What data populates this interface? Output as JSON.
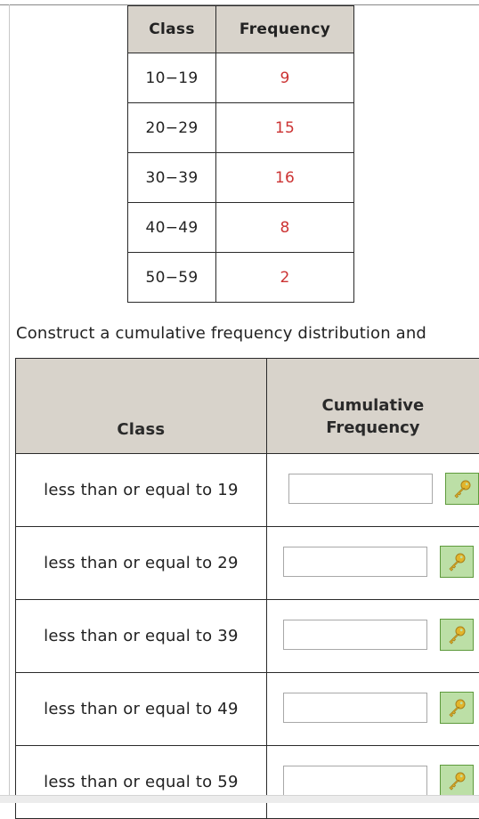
{
  "frequency_table": {
    "headers": {
      "class": "Class",
      "frequency": "Frequency"
    },
    "rows": [
      {
        "class": "10−19",
        "frequency": "9"
      },
      {
        "class": "20−29",
        "frequency": "15"
      },
      {
        "class": "30−39",
        "frequency": "16"
      },
      {
        "class": "40−49",
        "frequency": "8"
      },
      {
        "class": "50−59",
        "frequency": "2"
      }
    ]
  },
  "instruction": "Construct a cumulative frequency distribution and",
  "cumulative_table": {
    "headers": {
      "class": "Class",
      "cumulative_line1": "Cumulative",
      "cumulative_line2": "Frequency"
    },
    "rows": [
      {
        "class": "less than or equal to 19",
        "value": ""
      },
      {
        "class": "less than or equal to 29",
        "value": ""
      },
      {
        "class": "less than or equal to 39",
        "value": ""
      },
      {
        "class": "less than or equal to 49",
        "value": ""
      },
      {
        "class": "less than or equal to 59",
        "value": ""
      }
    ]
  },
  "colors": {
    "header_bg": "#d8d3cb",
    "frequency_value": "#cc3333",
    "key_button_bg": "#bcdfa6",
    "key_button_border": "#5e9a3c",
    "key_icon": "#e2b52c"
  },
  "icons": {
    "answer_button": "key-icon"
  }
}
